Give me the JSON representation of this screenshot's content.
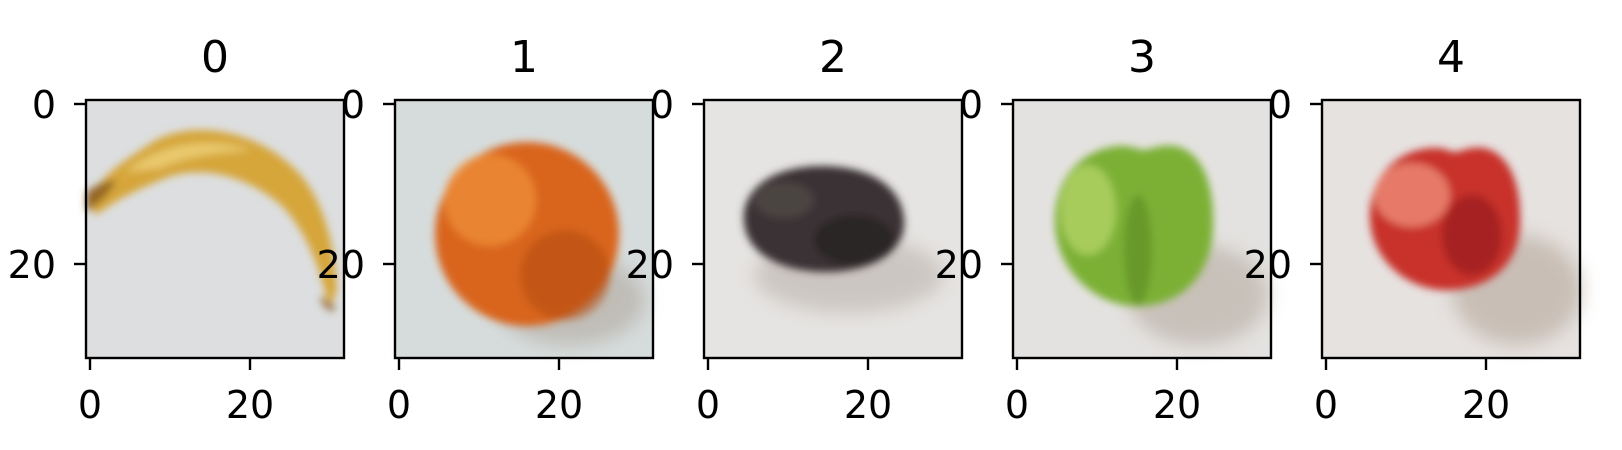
{
  "panels": [
    {
      "title": "0",
      "subject": "banana",
      "x_ticks": [
        "0",
        "20"
      ],
      "y_ticks": [
        "0",
        "20"
      ],
      "colors": {
        "background": "#dcdee0",
        "body": "#d6a63a",
        "highlight": "#eed27a",
        "shadow": "#8a5a20"
      }
    },
    {
      "title": "1",
      "subject": "orange",
      "x_ticks": [
        "0",
        "20"
      ],
      "y_ticks": [
        "0",
        "20"
      ],
      "colors": {
        "background": "#d6dcdc",
        "body": "#d9651a",
        "highlight": "#f0923a",
        "shadow": "#b04a12"
      }
    },
    {
      "title": "2",
      "subject": "avocado",
      "x_ticks": [
        "0",
        "20"
      ],
      "y_ticks": [
        "0",
        "20"
      ],
      "colors": {
        "background": "#e6e4e2",
        "body": "#3a3334",
        "highlight": "#56504f",
        "shadow": "#221c1d"
      }
    },
    {
      "title": "3",
      "subject": "green apple",
      "x_ticks": [
        "0",
        "20"
      ],
      "y_ticks": [
        "0",
        "20"
      ],
      "colors": {
        "background": "#e4e2e0",
        "body": "#7bb034",
        "highlight": "#b6d66a",
        "shadow": "#4f7d20"
      }
    },
    {
      "title": "4",
      "subject": "red apple",
      "x_ticks": [
        "0",
        "20"
      ],
      "y_ticks": [
        "0",
        "20"
      ],
      "colors": {
        "background": "#e6e2e0",
        "body": "#c8302c",
        "highlight": "#ee8c78",
        "shadow": "#8a1a18"
      }
    }
  ]
}
